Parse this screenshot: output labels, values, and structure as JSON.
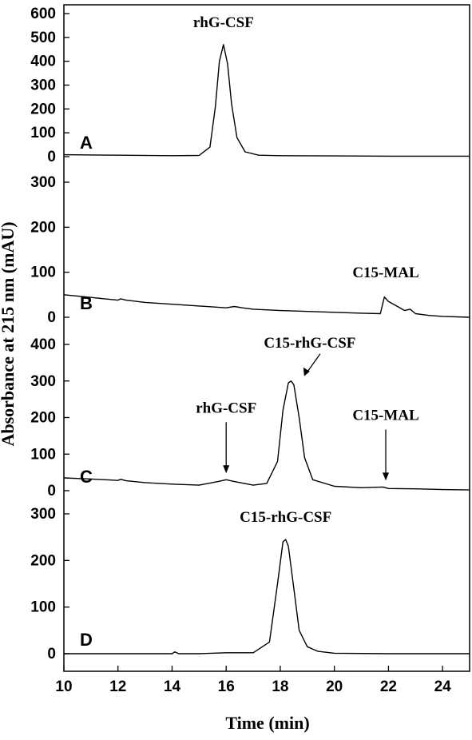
{
  "chart_data": {
    "type": "line",
    "xlabel": "Time (min)",
    "ylabel": "Absorbance at 215 nm (mAU)",
    "xlim": [
      10,
      25
    ],
    "x_ticks": [
      10,
      12,
      14,
      16,
      18,
      20,
      22,
      24
    ],
    "panels": [
      {
        "letter": "A",
        "ylim": [
          0,
          650
        ],
        "y_ticks": [
          0,
          100,
          200,
          300,
          400,
          500,
          600
        ],
        "series": [
          {
            "x": [
              10,
              12,
              14,
              15,
              15.4,
              15.6,
              15.75,
              15.9,
              16.05,
              16.2,
              16.4,
              16.7,
              17.2,
              18,
              20,
              22,
              25
            ],
            "y": [
              8,
              6,
              4,
              5,
              40,
              210,
              400,
              470,
              390,
              220,
              80,
              20,
              6,
              4,
              3,
              2,
              2
            ]
          }
        ],
        "annotations": [
          {
            "text": "rhG-CSF",
            "x": 15.9,
            "y": 470,
            "arrow": false
          }
        ]
      },
      {
        "letter": "B",
        "ylim": [
          -10,
          360
        ],
        "y_ticks": [
          0,
          100,
          200,
          300
        ],
        "series": [
          {
            "x": [
              10,
              11,
              12,
              12.1,
              12.3,
              13,
              14,
              15,
              16,
              16.3,
              16.6,
              17,
              18,
              19,
              20,
              21,
              21.7,
              21.85,
              22,
              22.3,
              22.6,
              22.8,
              23,
              23.5,
              24,
              25
            ],
            "y": [
              50,
              44,
              38,
              41,
              38,
              33,
              29,
              25,
              21,
              24,
              21,
              18,
              15,
              13,
              11,
              9,
              8,
              45,
              35,
              25,
              15,
              18,
              8,
              4,
              2,
              0
            ]
          }
        ],
        "annotations": [
          {
            "text": "C15-MAL",
            "x": 21.9,
            "y": 50,
            "arrow": false
          }
        ]
      },
      {
        "letter": "C",
        "ylim": [
          0,
          450
        ],
        "y_ticks": [
          0,
          100,
          200,
          300,
          400
        ],
        "series": [
          {
            "x": [
              10,
              11,
              12,
              12.1,
              12.3,
              13,
              14,
              15,
              15.7,
              16,
              16.3,
              17,
              17.5,
              17.9,
              18.1,
              18.3,
              18.4,
              18.5,
              18.7,
              18.9,
              19.2,
              20,
              21,
              21.8,
              22,
              23,
              24,
              25
            ],
            "y": [
              35,
              32,
              28,
              31,
              27,
              22,
              18,
              15,
              25,
              30,
              25,
              15,
              20,
              80,
              220,
              295,
              300,
              290,
              200,
              90,
              30,
              12,
              8,
              10,
              6,
              5,
              3,
              2
            ]
          }
        ],
        "annotations": [
          {
            "text": "rhG-CSF",
            "x": 16,
            "y": 30,
            "arrow": true
          },
          {
            "text": "C15-rhG-CSF",
            "x": 18.5,
            "y": 300,
            "arrow": true
          },
          {
            "text": "C15-MAL",
            "x": 21.9,
            "y": 10,
            "arrow": true
          }
        ]
      },
      {
        "letter": "D",
        "ylim": [
          -10,
          360
        ],
        "y_ticks": [
          0,
          100,
          200,
          300
        ],
        "series": [
          {
            "x": [
              10,
              12,
              14,
              14.1,
              14.25,
              15,
              16,
              17,
              17.6,
              17.9,
              18.1,
              18.2,
              18.3,
              18.5,
              18.7,
              19,
              19.4,
              20,
              22,
              25
            ],
            "y": [
              0,
              0,
              0,
              4,
              0,
              0,
              2,
              2,
              25,
              150,
              240,
              245,
              230,
              140,
              50,
              15,
              5,
              1,
              0,
              0
            ]
          }
        ],
        "annotations": [
          {
            "text": "C15-rhG-CSF",
            "x": 18.2,
            "y": 245,
            "arrow": false
          }
        ]
      }
    ]
  }
}
